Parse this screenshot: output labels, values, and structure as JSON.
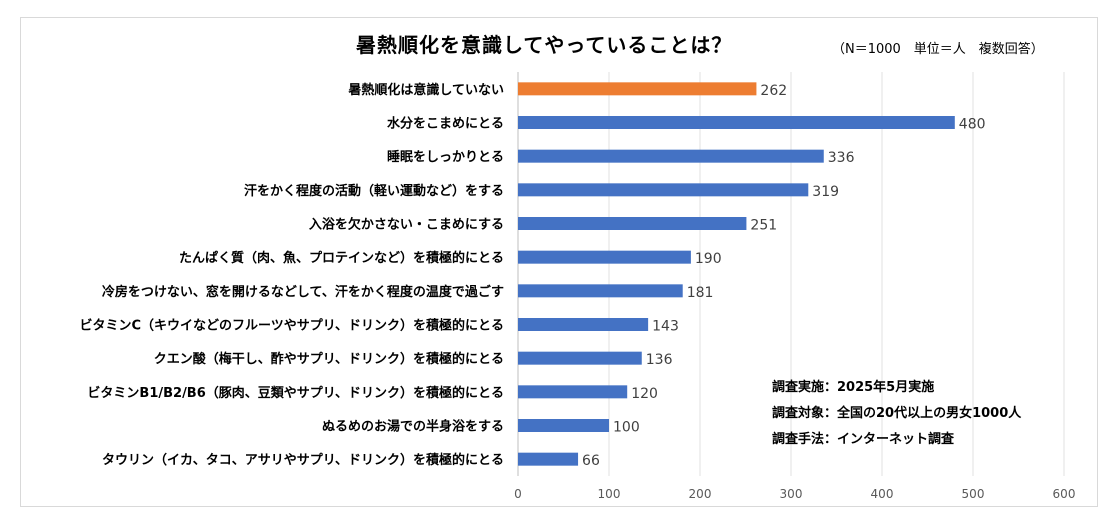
{
  "chart_data": {
    "type": "bar",
    "orientation": "horizontal",
    "title": "暑熱順化を意識してやっていることは？",
    "subtitle": "（N＝1000　単位＝人　複数回答）",
    "categories": [
      "暑熱順化は意識していない",
      "水分をこまめにとる",
      "睡眠をしっかりとる",
      "汗をかく程度の活動（軽い運動など）をする",
      "入浴を欠かさない・こまめにする",
      "たんぱく質（肉、魚、プロテインなど）を積極的にとる",
      "冷房をつけない、窓を開けるなどして、汗をかく程度の温度で過ごす",
      "ビタミンC（キウイなどのフルーツやサプリ、ドリンク）を積極的にとる",
      "クエン酸（梅干し、酢やサプリ、ドリンク）を積極的にとる",
      "ビタミンB1/B2/B6（豚肉、豆類やサプリ、ドリンク）を積極的にとる",
      "ぬるめのお湯での半身浴をする",
      "タウリン（イカ、タコ、アサリやサプリ、ドリンク）を積極的にとる"
    ],
    "values": [
      262,
      480,
      336,
      319,
      251,
      190,
      181,
      143,
      136,
      120,
      100,
      66
    ],
    "xlim": [
      0,
      600
    ],
    "xticks": [
      "0",
      "100",
      "200",
      "300",
      "400",
      "500",
      "600"
    ],
    "grid": true,
    "colors": {
      "highlight": "#ed7d31",
      "default": "#4472c4"
    },
    "notes": [
      "調査実施：2025年5月実施",
      "調査対象：全国の20代以上の男女1000人",
      "調査手法：インターネット調査"
    ]
  }
}
